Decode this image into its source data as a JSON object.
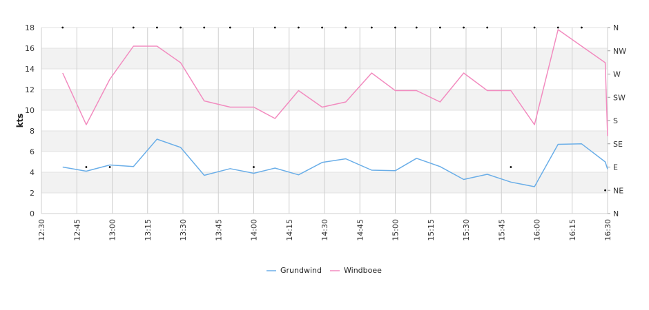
{
  "chart_data": {
    "type": "line",
    "ylabel": "kts",
    "ylim": [
      0,
      18
    ],
    "y_ticks": [
      "0",
      "2",
      "4",
      "6",
      "8",
      "10",
      "12",
      "14",
      "16",
      "18"
    ],
    "x_range": [
      "12:30",
      "16:30"
    ],
    "x_ticks": [
      "12:30",
      "12:45",
      "13:00",
      "13:15",
      "13:30",
      "13:45",
      "14:00",
      "14:15",
      "14:30",
      "14:45",
      "15:00",
      "15:15",
      "15:30",
      "15:45",
      "16:00",
      "16:15",
      "16:30"
    ],
    "direction_ticks": [
      "N",
      "NE",
      "E",
      "SE",
      "S",
      "SW",
      "W",
      "NW",
      "N"
    ],
    "direction_range_deg": [
      0,
      360
    ],
    "grid": true,
    "legend_position": "bottom",
    "series": [
      {
        "name": "Grundwind",
        "color": "#6aaee8",
        "x": [
          "12:39",
          "12:49",
          "12:59",
          "13:09",
          "13:19",
          "13:29",
          "13:39",
          "13:50",
          "14:00",
          "14:09",
          "14:19",
          "14:29",
          "14:39",
          "14:50",
          "15:00",
          "15:09",
          "15:19",
          "15:29",
          "15:39",
          "15:49",
          "15:59",
          "16:09",
          "16:19",
          "16:29",
          "16:30"
        ],
        "values": [
          4.5,
          4.1,
          4.7,
          4.55,
          7.2,
          6.4,
          3.7,
          4.35,
          3.9,
          4.4,
          3.75,
          4.95,
          5.3,
          4.2,
          4.15,
          5.35,
          4.55,
          3.3,
          3.8,
          3.05,
          2.6,
          6.7,
          6.75,
          5.0,
          4.3
        ]
      },
      {
        "name": "Windboee",
        "color": "#f28bbf",
        "x": [
          "12:39",
          "12:49",
          "12:59",
          "13:09",
          "13:19",
          "13:29",
          "13:39",
          "13:50",
          "14:00",
          "14:09",
          "14:19",
          "14:29",
          "14:39",
          "14:50",
          "15:00",
          "15:09",
          "15:19",
          "15:29",
          "15:39",
          "15:49",
          "15:59",
          "16:09",
          "16:19",
          "16:29",
          "16:30"
        ],
        "values": [
          13.6,
          8.6,
          13.0,
          16.2,
          16.2,
          14.6,
          10.9,
          10.3,
          10.3,
          9.2,
          11.9,
          10.3,
          10.8,
          13.6,
          11.9,
          11.9,
          10.8,
          13.6,
          11.9,
          11.9,
          8.6,
          17.8,
          16.2,
          14.6,
          7.5
        ]
      },
      {
        "name": "",
        "kind": "direction",
        "color": "#000000",
        "x": [
          "12:39",
          "12:49",
          "12:59",
          "13:09",
          "13:19",
          "13:29",
          "13:39",
          "13:50",
          "14:00",
          "14:09",
          "14:19",
          "14:29",
          "14:39",
          "14:50",
          "15:00",
          "15:09",
          "15:19",
          "15:29",
          "15:39",
          "15:49",
          "15:59",
          "16:09",
          "16:19",
          "16:29"
        ],
        "values": [
          360,
          90,
          90,
          360,
          360,
          360,
          360,
          360,
          90,
          360,
          360,
          360,
          360,
          360,
          360,
          360,
          360,
          360,
          360,
          90,
          360,
          360,
          360,
          45
        ]
      }
    ]
  }
}
